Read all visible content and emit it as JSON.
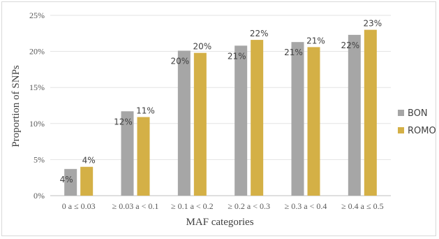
{
  "chart_data": {
    "type": "bar",
    "categories": [
      "0 a ≤ 0.03",
      "≥ 0.03 a < 0.1",
      "≥ 0.1 a < 0.2",
      "≥ 0.2 a < 0.3",
      "≥ 0.3 a < 0.4",
      "≥ 0.4 a ≤ 0.5"
    ],
    "series": [
      {
        "name": "BON",
        "color": "#a6a6a6",
        "values": [
          3.7,
          11.7,
          20.1,
          20.8,
          21.3,
          22.3
        ],
        "labels": [
          "4%",
          "12%",
          "20%",
          "21%",
          "21%",
          "22%"
        ]
      },
      {
        "name": "ROMO",
        "color": "#d4b046",
        "values": [
          4.0,
          10.9,
          19.8,
          21.6,
          20.6,
          23.0
        ],
        "labels": [
          "4%",
          "11%",
          "20%",
          "22%",
          "21%",
          "23%"
        ]
      }
    ],
    "title": "",
    "xlabel": "MAF categories",
    "ylabel": "Proportion of SNPs",
    "ylim": [
      0,
      25
    ],
    "yticks": [
      "0%",
      "5%",
      "10%",
      "15%",
      "20%",
      "25%"
    ],
    "ytick_values": [
      0,
      5,
      10,
      15,
      20,
      25
    ],
    "grid": true,
    "legend": "right"
  }
}
